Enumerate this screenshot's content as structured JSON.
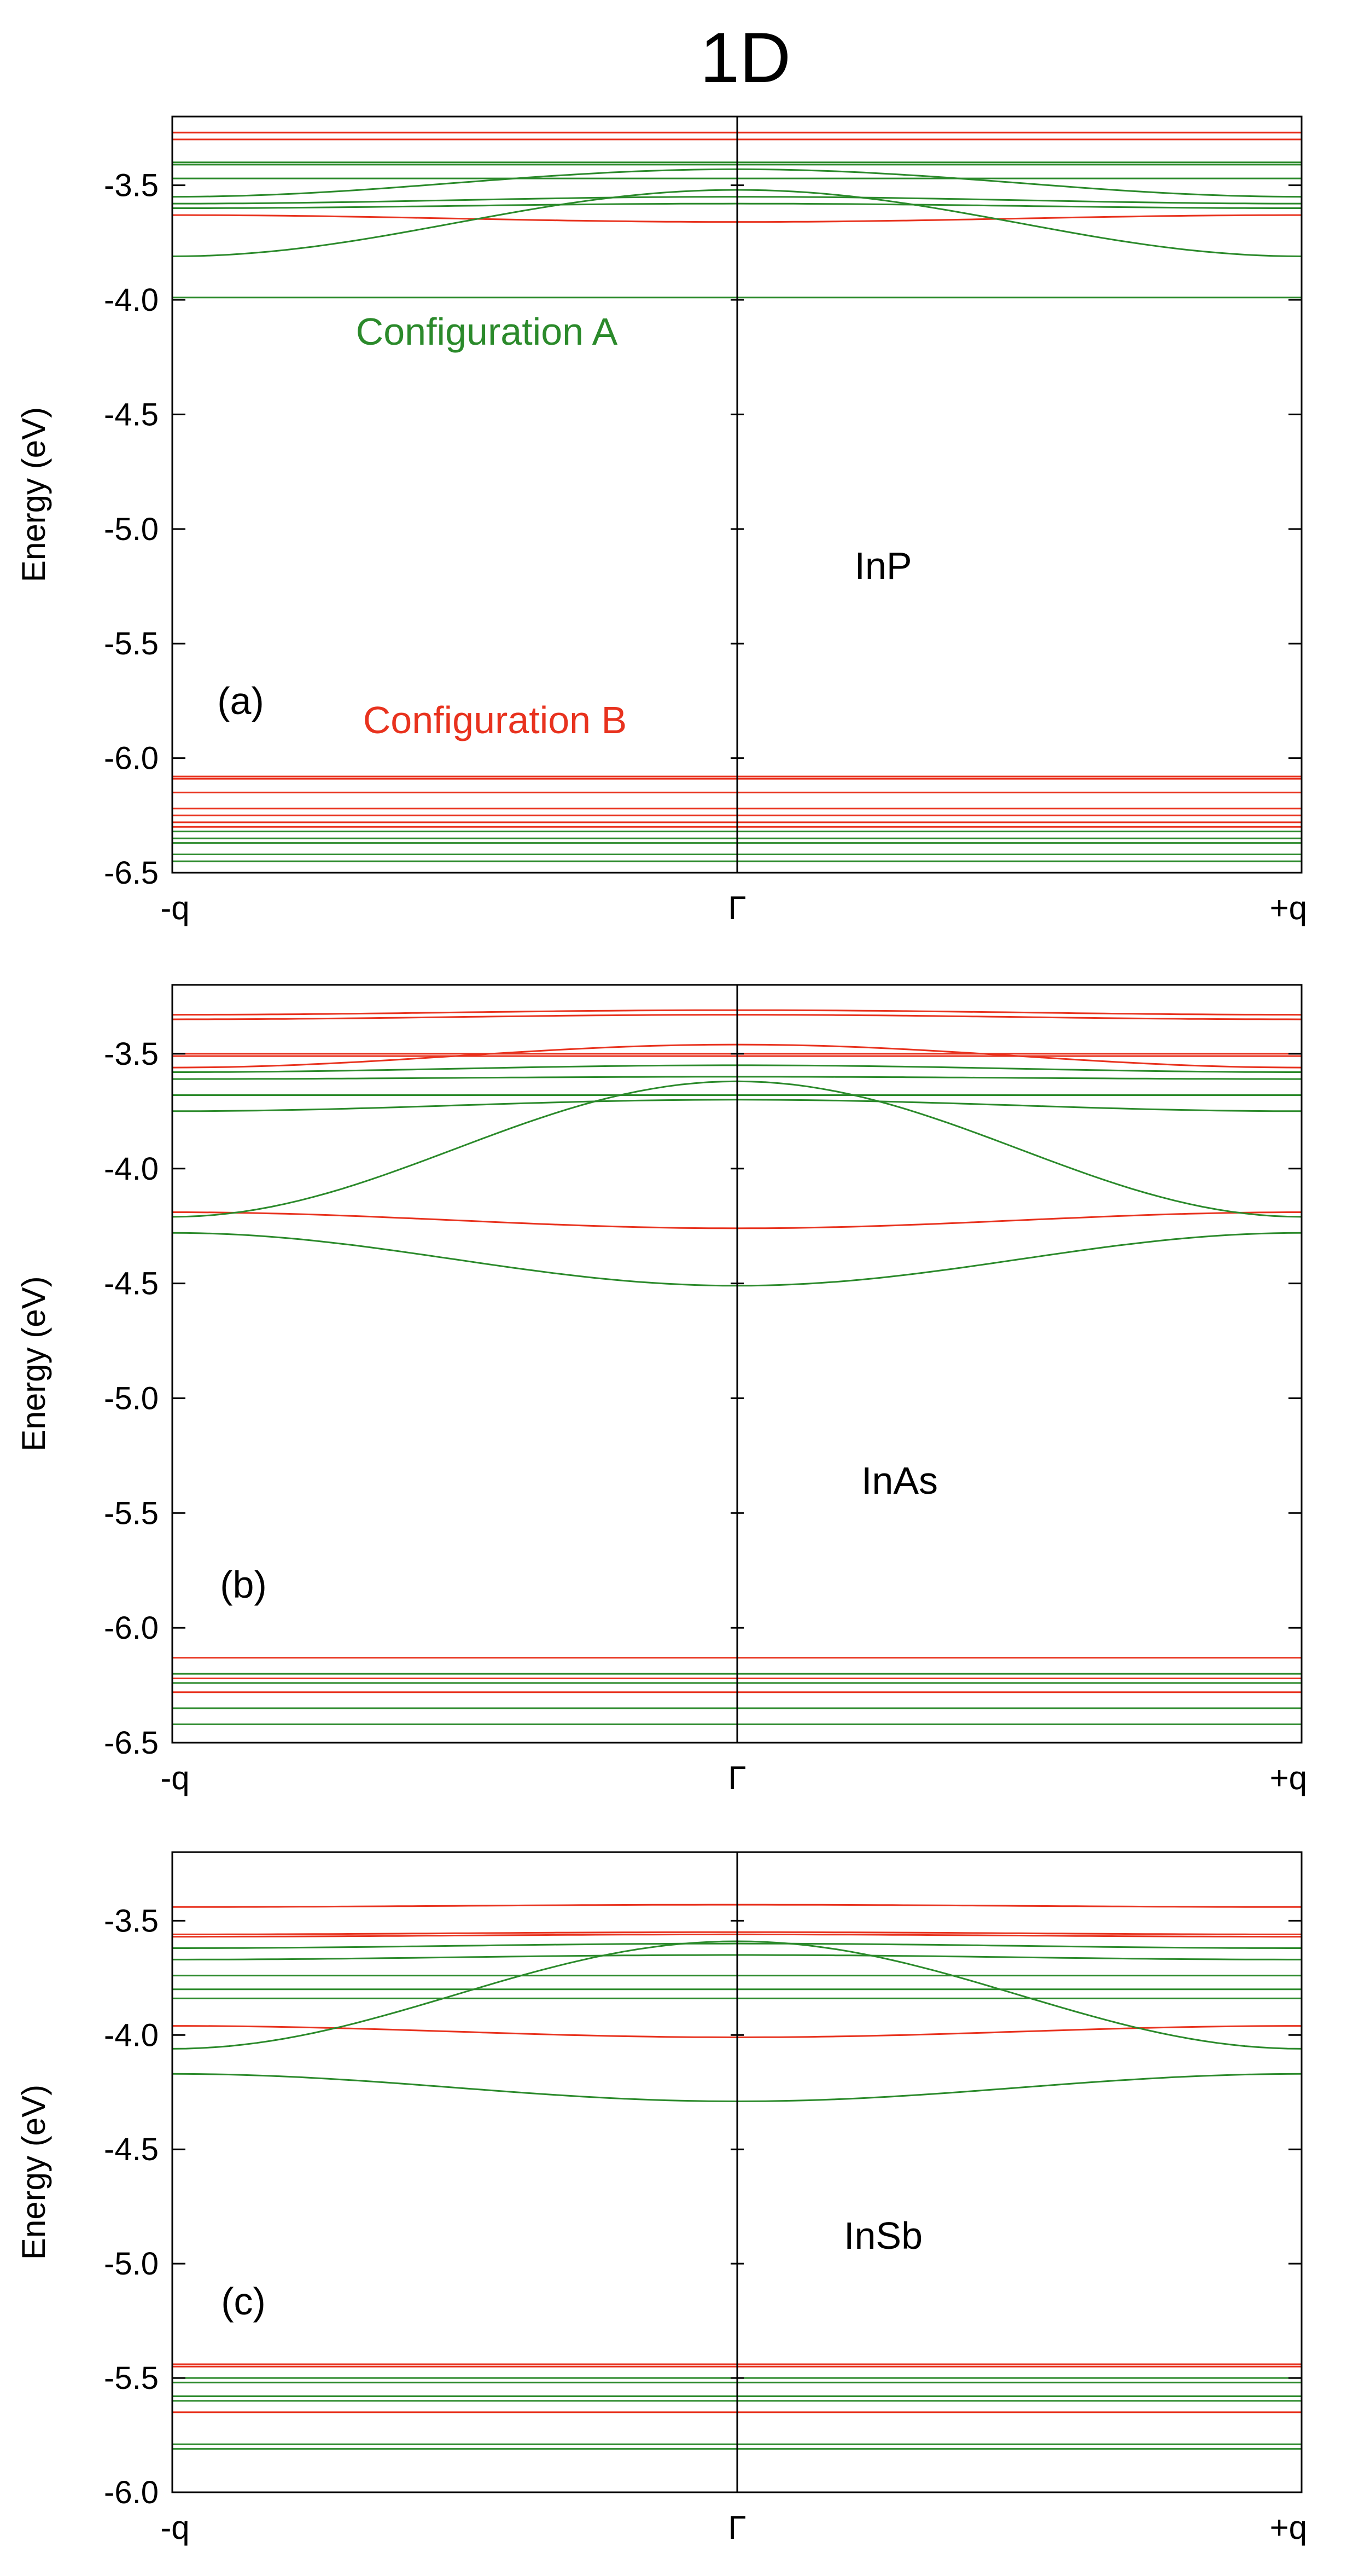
{
  "figure_title": "1D",
  "colors": {
    "config_a": "#2b8a2b",
    "config_b": "#e8321e",
    "axis": "#000000"
  },
  "chart_data": [
    {
      "type": "line",
      "panel_label": "(a)",
      "material": "InP",
      "ylabel": "Energy (eV)",
      "ylim": [
        -6.5,
        -3.2
      ],
      "yticks": [
        -6.5,
        -6.0,
        -5.5,
        -5.0,
        -4.5,
        -4.0,
        -3.5
      ],
      "ytick_labels": [
        "-6.5",
        "-6.0",
        "-5.5",
        "-5.0",
        "-4.5",
        "-4.0",
        "-3.5"
      ],
      "xticks": [
        "-q",
        "Γ",
        "+q"
      ],
      "annotations": [
        {
          "text": "Configuration A",
          "color_key": "config_a"
        },
        {
          "text": "Configuration B",
          "color_key": "config_b"
        }
      ],
      "series": [
        {
          "name": "Configuration B",
          "color_key": "config_b",
          "bands": [
            {
              "edge": -3.27,
              "center": -3.27
            },
            {
              "edge": -3.3,
              "center": -3.3
            },
            {
              "edge": -3.63,
              "center": -3.66
            },
            {
              "edge": -6.08,
              "center": -6.08
            },
            {
              "edge": -6.09,
              "center": -6.09
            },
            {
              "edge": -6.15,
              "center": -6.15
            },
            {
              "edge": -6.22,
              "center": -6.22
            },
            {
              "edge": -6.25,
              "center": -6.25
            },
            {
              "edge": -6.28,
              "center": -6.28
            },
            {
              "edge": -6.3,
              "center": -6.3
            }
          ]
        },
        {
          "name": "Configuration A",
          "color_key": "config_a",
          "bands": [
            {
              "edge": -3.4,
              "center": -3.4
            },
            {
              "edge": -3.41,
              "center": -3.41
            },
            {
              "edge": -3.47,
              "center": -3.47
            },
            {
              "edge": -3.55,
              "center": -3.43
            },
            {
              "edge": -3.58,
              "center": -3.55
            },
            {
              "edge": -3.6,
              "center": -3.58
            },
            {
              "edge": -3.81,
              "center": -3.52
            },
            {
              "edge": -3.99,
              "center": -3.99
            },
            {
              "edge": -6.32,
              "center": -6.32
            },
            {
              "edge": -6.35,
              "center": -6.35
            },
            {
              "edge": -6.37,
              "center": -6.37
            },
            {
              "edge": -6.42,
              "center": -6.42
            },
            {
              "edge": -6.45,
              "center": -6.45
            }
          ]
        }
      ]
    },
    {
      "type": "line",
      "panel_label": "(b)",
      "material": "InAs",
      "ylabel": "Energy (eV)",
      "ylim": [
        -6.5,
        -3.2
      ],
      "yticks": [
        -6.5,
        -6.0,
        -5.5,
        -5.0,
        -4.5,
        -4.0,
        -3.5
      ],
      "ytick_labels": [
        "-6.5",
        "-6.0",
        "-5.5",
        "-5.0",
        "-4.5",
        "-4.0",
        "-3.5"
      ],
      "xticks": [
        "-q",
        "Γ",
        "+q"
      ],
      "series": [
        {
          "name": "Configuration B",
          "color_key": "config_b",
          "bands": [
            {
              "edge": -3.33,
              "center": -3.31
            },
            {
              "edge": -3.35,
              "center": -3.33
            },
            {
              "edge": -3.5,
              "center": -3.5
            },
            {
              "edge": -3.51,
              "center": -3.51
            },
            {
              "edge": -3.56,
              "center": -3.46
            },
            {
              "edge": -4.19,
              "center": -4.26
            },
            {
              "edge": -6.13,
              "center": -6.13
            },
            {
              "edge": -6.22,
              "center": -6.22
            },
            {
              "edge": -6.28,
              "center": -6.28
            }
          ]
        },
        {
          "name": "Configuration A",
          "color_key": "config_a",
          "bands": [
            {
              "edge": -3.58,
              "center": -3.55
            },
            {
              "edge": -3.61,
              "center": -3.6
            },
            {
              "edge": -3.68,
              "center": -3.68
            },
            {
              "edge": -3.75,
              "center": -3.7
            },
            {
              "edge": -4.21,
              "center": -3.62
            },
            {
              "edge": -4.28,
              "center": -4.51
            },
            {
              "edge": -6.2,
              "center": -6.2
            },
            {
              "edge": -6.24,
              "center": -6.24
            },
            {
              "edge": -6.35,
              "center": -6.35
            },
            {
              "edge": -6.42,
              "center": -6.42
            }
          ]
        }
      ]
    },
    {
      "type": "line",
      "panel_label": "(c)",
      "material": "InSb",
      "ylabel": "Energy (eV)",
      "ylim": [
        -6.0,
        -3.2
      ],
      "yticks": [
        -6.0,
        -5.5,
        -5.0,
        -4.5,
        -4.0,
        -3.5
      ],
      "ytick_labels": [
        "-6.0",
        "-5.5",
        "-5.0",
        "-4.5",
        "-4.0",
        "-3.5"
      ],
      "xticks": [
        "-q",
        "Γ",
        "+q"
      ],
      "series": [
        {
          "name": "Configuration B",
          "color_key": "config_b",
          "bands": [
            {
              "edge": -3.44,
              "center": -3.43
            },
            {
              "edge": -3.56,
              "center": -3.55
            },
            {
              "edge": -3.57,
              "center": -3.56
            },
            {
              "edge": -3.96,
              "center": -4.01
            },
            {
              "edge": -5.44,
              "center": -5.44
            },
            {
              "edge": -5.45,
              "center": -5.45
            },
            {
              "edge": -5.65,
              "center": -5.65
            }
          ]
        },
        {
          "name": "Configuration A",
          "color_key": "config_a",
          "bands": [
            {
              "edge": -3.62,
              "center": -3.6
            },
            {
              "edge": -3.67,
              "center": -3.65
            },
            {
              "edge": -3.74,
              "center": -3.74
            },
            {
              "edge": -3.8,
              "center": -3.8
            },
            {
              "edge": -3.84,
              "center": -3.84
            },
            {
              "edge": -4.06,
              "center": -3.59
            },
            {
              "edge": -4.17,
              "center": -4.29
            },
            {
              "edge": -5.5,
              "center": -5.5
            },
            {
              "edge": -5.52,
              "center": -5.52
            },
            {
              "edge": -5.58,
              "center": -5.58
            },
            {
              "edge": -5.6,
              "center": -5.6
            },
            {
              "edge": -5.79,
              "center": -5.79
            },
            {
              "edge": -5.81,
              "center": -5.81
            }
          ]
        }
      ]
    }
  ]
}
